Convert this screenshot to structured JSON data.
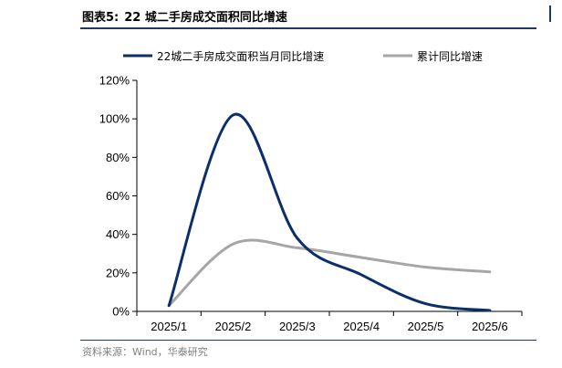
{
  "figure": {
    "label": "图表5:",
    "title": "22 城二手房成交面积同比增速",
    "source": "资料来源：Wind，华泰研究"
  },
  "chart_data": {
    "type": "line",
    "title": "22 城二手房成交面积同比增速",
    "categories": [
      "2025/1",
      "2025/2",
      "2025/3",
      "2025/4",
      "2025/5",
      "2025/6"
    ],
    "series": [
      {
        "name": "22城二手房成交面积当月同比增速",
        "values": [
          3,
          102,
          38,
          19,
          4,
          0.5
        ],
        "color": "#0b2f6b"
      },
      {
        "name": "累计同比增速",
        "values": [
          3,
          35,
          33,
          28,
          23,
          20.5
        ],
        "color": "#a6a6a6"
      }
    ],
    "ylim": [
      0,
      120
    ],
    "yticks": [
      0,
      20,
      40,
      60,
      80,
      100,
      120
    ],
    "ytick_labels": [
      "0%",
      "20%",
      "40%",
      "60%",
      "80%",
      "100%",
      "120%"
    ],
    "grid": false,
    "legend_position": "top"
  }
}
